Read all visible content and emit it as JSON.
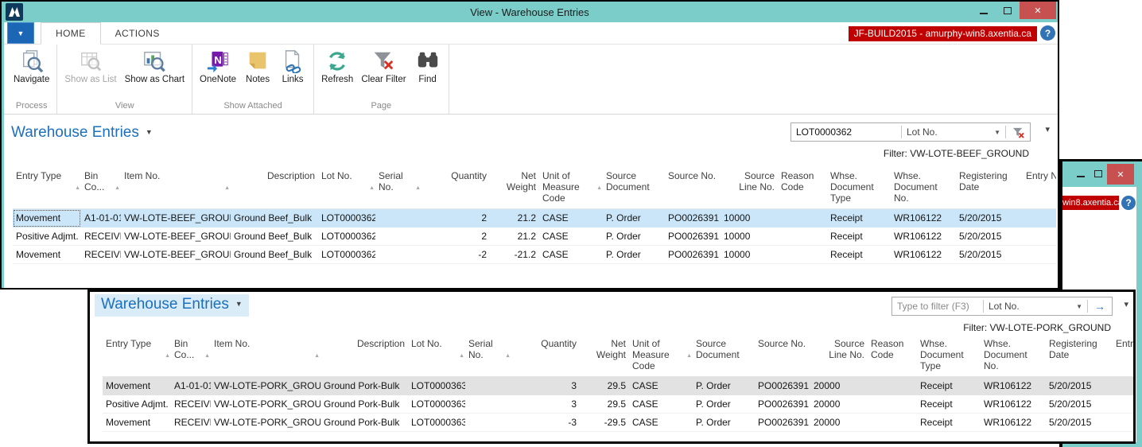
{
  "window1": {
    "title": "View - Warehouse Entries",
    "tab_home": "HOME",
    "tab_actions": "ACTIONS",
    "server_badge": "JF-BUILD2015 - amurphy-win8.axentia.ca",
    "ribbon": {
      "navigate": "Navigate",
      "show_as_list": "Show as List",
      "show_as_chart": "Show as Chart",
      "onenote": "OneNote",
      "notes": "Notes",
      "links": "Links",
      "refresh": "Refresh",
      "clear_filter": "Clear Filter",
      "find": "Find",
      "group_process": "Process",
      "group_view": "View",
      "group_show_attached": "Show Attached",
      "group_page": "Page"
    },
    "page_title": "Warehouse Entries",
    "filter_value": "LOT0000362",
    "filter_field": "Lot No.",
    "filter_caption": "Filter: VW-LOTE-BEEF_GROUND",
    "rows": [
      {
        "entry_type": "Movement",
        "bin_code": "A1-01-01",
        "item_no": "VW-LOTE-BEEF_GROUND",
        "description": "Ground Beef_Bulk",
        "lot_no": "LOT0000362",
        "serial_no": "",
        "quantity": "2",
        "net_weight": "21.2",
        "uom": "CASE",
        "source_doc": "P. Order",
        "source_no": "PO0026391",
        "source_line_no": "10000",
        "reason_code": "",
        "whse_doc_type": "Receipt",
        "whse_doc_no": "WR106122",
        "reg_date": "5/20/2015",
        "entry_no": "",
        "selected": true,
        "focused": true
      },
      {
        "entry_type": "Positive Adjmt.",
        "bin_code": "RECEIVE",
        "item_no": "VW-LOTE-BEEF_GROUND",
        "description": "Ground Beef_Bulk",
        "lot_no": "LOT0000362",
        "serial_no": "",
        "quantity": "2",
        "net_weight": "21.2",
        "uom": "CASE",
        "source_doc": "P. Order",
        "source_no": "PO0026391",
        "source_line_no": "10000",
        "reason_code": "",
        "whse_doc_type": "Receipt",
        "whse_doc_no": "WR106122",
        "reg_date": "5/20/2015",
        "entry_no": ""
      },
      {
        "entry_type": "Movement",
        "bin_code": "RECEIVE",
        "item_no": "VW-LOTE-BEEF_GROUND",
        "description": "Ground Beef_Bulk",
        "lot_no": "LOT0000362",
        "serial_no": "",
        "quantity": "-2",
        "net_weight": "-21.2",
        "uom": "CASE",
        "source_doc": "P. Order",
        "source_no": "PO0026391",
        "source_line_no": "10000",
        "reason_code": "",
        "whse_doc_type": "Receipt",
        "whse_doc_no": "WR106122",
        "reg_date": "5/20/2015",
        "entry_no": ""
      }
    ]
  },
  "window2": {
    "page_title": "Warehouse Entries",
    "filter_placeholder": "Type to filter (F3)",
    "filter_field": "Lot No.",
    "filter_caption": "Filter: VW-LOTE-PORK_GROUND",
    "rows": [
      {
        "entry_type": "Movement",
        "bin_code": "A1-01-01",
        "item_no": "VW-LOTE-PORK_GROU...",
        "description": "Ground Pork-Bulk",
        "lot_no": "LOT0000363",
        "serial_no": "",
        "quantity": "3",
        "net_weight": "29.5",
        "uom": "CASE",
        "source_doc": "P. Order",
        "source_no": "PO0026391",
        "source_line_no": "20000",
        "reason_code": "",
        "whse_doc_type": "Receipt",
        "whse_doc_no": "WR106122",
        "reg_date": "5/20/2015",
        "entry_no": "",
        "selected": true
      },
      {
        "entry_type": "Positive Adjmt.",
        "bin_code": "RECEIVE",
        "item_no": "VW-LOTE-PORK_GROU...",
        "description": "Ground Pork-Bulk",
        "lot_no": "LOT0000363",
        "serial_no": "",
        "quantity": "3",
        "net_weight": "29.5",
        "uom": "CASE",
        "source_doc": "P. Order",
        "source_no": "PO0026391",
        "source_line_no": "20000",
        "reason_code": "",
        "whse_doc_type": "Receipt",
        "whse_doc_no": "WR106122",
        "reg_date": "5/20/2015",
        "entry_no": ""
      },
      {
        "entry_type": "Movement",
        "bin_code": "RECEIVE",
        "item_no": "VW-LOTE-PORK_GROU...",
        "description": "Ground Pork-Bulk",
        "lot_no": "LOT0000363",
        "serial_no": "",
        "quantity": "-3",
        "net_weight": "-29.5",
        "uom": "CASE",
        "source_doc": "P. Order",
        "source_no": "PO0026391",
        "source_line_no": "20000",
        "reason_code": "",
        "whse_doc_type": "Receipt",
        "whse_doc_no": "WR106122",
        "reg_date": "5/20/2015",
        "entry_no": ""
      }
    ]
  },
  "window3": {
    "server_badge_fragment": "win8.axentia.ca"
  },
  "table": {
    "columns": [
      {
        "key": "entry_type",
        "label": "Entry Type",
        "sort": true
      },
      {
        "key": "bin_code",
        "label": "Bin Co...",
        "sort": true
      },
      {
        "key": "item_no",
        "label": "Item No.",
        "sort": true
      },
      {
        "key": "description",
        "label": "Description"
      },
      {
        "key": "lot_no",
        "label": "Lot No.",
        "sort": true
      },
      {
        "key": "serial_no",
        "label": "Serial No.",
        "sort": true
      },
      {
        "key": "quantity",
        "label": "Quantity"
      },
      {
        "key": "net_weight",
        "label": "Net Weight"
      },
      {
        "key": "uom",
        "label": "Unit of Measure Code",
        "sort": true
      },
      {
        "key": "source_doc",
        "label": "Source Document"
      },
      {
        "key": "source_no",
        "label": "Source No."
      },
      {
        "key": "source_line_no",
        "label": "Source Line No."
      },
      {
        "key": "reason_code",
        "label": "Reason Code"
      },
      {
        "key": "whse_doc_type",
        "label": "Whse. Document Type"
      },
      {
        "key": "whse_doc_no",
        "label": "Whse. Document No."
      },
      {
        "key": "reg_date",
        "label": "Registering Date"
      },
      {
        "key": "entry_no",
        "label": "Entry No."
      }
    ]
  },
  "colors": {
    "titlebar_teal": "#7acdc8",
    "badge_red": "#c00000",
    "close_red": "#c75050",
    "selected_row_blue": "#cbe6f8",
    "page_title_blue": "#1b6fbf",
    "app_button_blue": "#1b66b5"
  }
}
